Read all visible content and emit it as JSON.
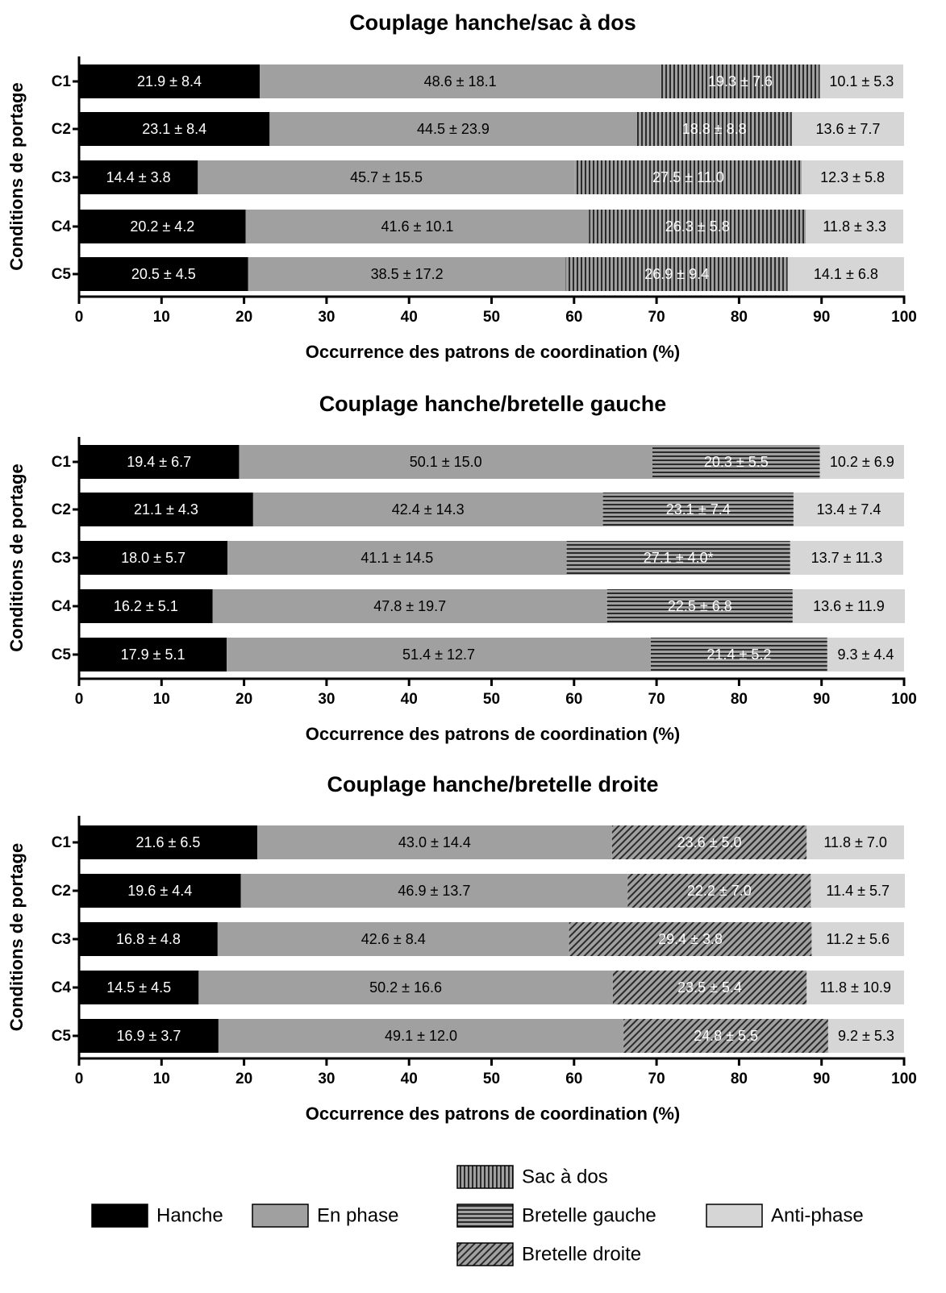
{
  "colors": {
    "hanche": "#000000",
    "en_phase": "#a0a0a0",
    "pattern_bg": "#a0a0a0",
    "pattern_line": "#2a2a2a",
    "anti_phase": "#d6d6d6"
  },
  "chart_data": [
    {
      "type": "bar",
      "orientation": "horizontal",
      "stacked": true,
      "title": "Couplage hanche/sac à dos",
      "xlabel": "Occurrence des patrons de coordination (%)",
      "ylabel": "Conditions de portage",
      "xlim": [
        0,
        100
      ],
      "xticks": [
        "0",
        "10",
        "20",
        "30",
        "40",
        "50",
        "60",
        "70",
        "80",
        "90",
        "100"
      ],
      "categories": [
        "C1",
        "C2",
        "C3",
        "C4",
        "C5"
      ],
      "series": [
        {
          "name": "Hanche",
          "pattern": "solid-black",
          "values": [
            21.9,
            23.1,
            14.4,
            20.2,
            20.5
          ],
          "labels": [
            "21.9 ± 8.4",
            "23.1 ± 8.4",
            "14.4 ± 3.8",
            "20.2 ± 4.2",
            "20.5 ± 4.5"
          ]
        },
        {
          "name": "En phase",
          "pattern": "solid-gray",
          "values": [
            48.6,
            44.5,
            45.7,
            41.6,
            38.5
          ],
          "labels": [
            "48.6 ± 18.1",
            "44.5 ± 23.9",
            "45.7 ± 15.5",
            "41.6 ± 10.1",
            "38.5 ± 17.2"
          ]
        },
        {
          "name": "Sac à dos",
          "pattern": "vertical",
          "values": [
            19.3,
            18.8,
            27.5,
            26.3,
            26.9
          ],
          "labels": [
            "19.3 ± 7.6",
            "18.8 ± 8.8",
            "27.5 ± 11.0",
            "26.3 ± 5.8",
            "26.9 ± 9.4"
          ]
        },
        {
          "name": "Anti-phase",
          "pattern": "solid-light",
          "values": [
            10.1,
            13.6,
            12.3,
            11.8,
            14.1
          ],
          "labels": [
            "10.1 ± 5.3",
            "13.6 ± 7.7",
            "12.3 ± 5.8",
            "11.8 ± 3.3",
            "14.1 ± 6.8"
          ]
        }
      ]
    },
    {
      "type": "bar",
      "orientation": "horizontal",
      "stacked": true,
      "title": "Couplage hanche/bretelle gauche",
      "xlabel": "Occurrence des patrons de coordination (%)",
      "ylabel": "Conditions de portage",
      "xlim": [
        0,
        100
      ],
      "xticks": [
        "0",
        "10",
        "20",
        "30",
        "40",
        "50",
        "60",
        "70",
        "80",
        "90",
        "100"
      ],
      "categories": [
        "C1",
        "C2",
        "C3",
        "C4",
        "C5"
      ],
      "series": [
        {
          "name": "Hanche",
          "pattern": "solid-black",
          "values": [
            19.4,
            21.1,
            18.0,
            16.2,
            17.9
          ],
          "labels": [
            "19.4 ± 6.7",
            "21.1 ± 4.3",
            "18.0 ± 5.7",
            "16.2 ± 5.1",
            "17.9 ± 5.1"
          ]
        },
        {
          "name": "En phase",
          "pattern": "solid-gray",
          "values": [
            50.1,
            42.4,
            41.1,
            47.8,
            51.4
          ],
          "labels": [
            "50.1 ± 15.0",
            "42.4 ± 14.3",
            "41.1 ± 14.5",
            "47.8 ± 19.7",
            "51.4 ± 12.7"
          ]
        },
        {
          "name": "Bretelle gauche",
          "pattern": "horizontal",
          "values": [
            20.3,
            23.1,
            27.1,
            22.5,
            21.4
          ],
          "labels": [
            "20.3 ± 5.5",
            "23.1 ± 7.4",
            "27.1 ± 4.0*",
            "22.5 ± 6.8",
            "21.4 ± 5.2"
          ]
        },
        {
          "name": "Anti-phase",
          "pattern": "solid-light",
          "values": [
            10.2,
            13.4,
            13.7,
            13.6,
            9.3
          ],
          "labels": [
            "10.2 ± 6.9",
            "13.4 ± 7.4",
            "13.7 ± 11.3",
            "13.6 ± 11.9",
            "9.3 ± 4.4"
          ]
        }
      ]
    },
    {
      "type": "bar",
      "orientation": "horizontal",
      "stacked": true,
      "title": "Couplage hanche/bretelle droite",
      "xlabel": "Occurrence des patrons de coordination (%)",
      "ylabel": "Conditions de portage",
      "xlim": [
        0,
        100
      ],
      "xticks": [
        "0",
        "10",
        "20",
        "30",
        "40",
        "50",
        "60",
        "70",
        "80",
        "90",
        "100"
      ],
      "categories": [
        "C1",
        "C2",
        "C3",
        "C4",
        "C5"
      ],
      "series": [
        {
          "name": "Hanche",
          "pattern": "solid-black",
          "values": [
            21.6,
            19.6,
            16.8,
            14.5,
            16.9
          ],
          "labels": [
            "21.6 ± 6.5",
            "19.6 ± 4.4",
            "16.8 ± 4.8",
            "14.5 ± 4.5",
            "16.9 ± 3.7"
          ]
        },
        {
          "name": "En phase",
          "pattern": "solid-gray",
          "values": [
            43.0,
            46.9,
            42.6,
            50.2,
            49.1
          ],
          "labels": [
            "43.0 ± 14.4",
            "46.9 ± 13.7",
            "42.6 ± 8.4",
            "50.2 ± 16.6",
            "49.1 ± 12.0"
          ]
        },
        {
          "name": "Bretelle droite",
          "pattern": "diagonal",
          "values": [
            23.6,
            22.2,
            29.4,
            23.5,
            24.8
          ],
          "labels": [
            "23.6 ± 5.0",
            "22.2 ± 7.0",
            "29.4 ± 3.8",
            "23.5 ± 5.4",
            "24.8 ± 5.5"
          ]
        },
        {
          "name": "Anti-phase",
          "pattern": "solid-light",
          "values": [
            11.8,
            11.4,
            11.2,
            11.8,
            9.2
          ],
          "labels": [
            "11.8 ± 7.0",
            "11.4 ± 5.7",
            "11.2 ± 5.6",
            "11.8 ± 10.9",
            "9.2 ± 5.3"
          ]
        }
      ]
    }
  ],
  "legend": {
    "position": "bottom",
    "items": [
      {
        "label": "Hanche",
        "pattern": "solid-black"
      },
      {
        "label": "En phase",
        "pattern": "solid-gray"
      },
      {
        "label": "Sac à dos",
        "pattern": "vertical"
      },
      {
        "label": "Bretelle gauche",
        "pattern": "horizontal"
      },
      {
        "label": "Bretelle droite",
        "pattern": "diagonal"
      },
      {
        "label": "Anti-phase",
        "pattern": "solid-light"
      }
    ]
  }
}
